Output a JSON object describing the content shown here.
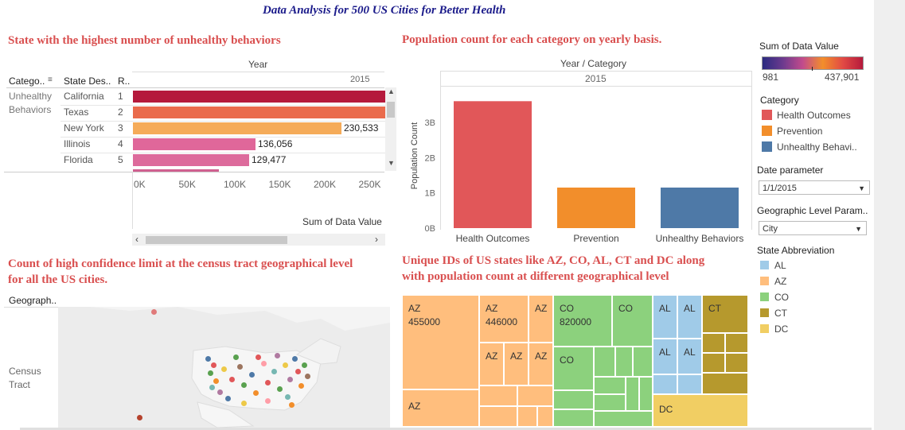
{
  "dashboard": {
    "title": "Data Analysis for 500 US Cities for Better Health"
  },
  "panel1": {
    "title": "State with the highest number of unhealthy behaviors",
    "col_header_top": "Year",
    "col_header_year": "2015",
    "headers": [
      "Catego..",
      "State Des..",
      "R.."
    ],
    "category_label": "Unhealthy Behaviors",
    "rows": [
      {
        "state": "California",
        "rank": "1",
        "value_label": "",
        "color": "#b5193c"
      },
      {
        "state": "Texas",
        "rank": "2",
        "value_label": "",
        "color": "#ea6b4c"
      },
      {
        "state": "New York",
        "rank": "3",
        "value_label": "230,533",
        "color": "#f5ab59"
      },
      {
        "state": "Illinois",
        "rank": "4",
        "value_label": "136,056",
        "color": "#e0679a"
      },
      {
        "state": "Florida",
        "rank": "5",
        "value_label": "129,477",
        "color": "#dd6b9c"
      }
    ],
    "x_ticks": [
      "0K",
      "50K",
      "100K",
      "150K",
      "200K",
      "250K"
    ],
    "x_title": "Sum of Data Value"
  },
  "panel2": {
    "title": "Population count for each category on yearly basis.",
    "col_header_top": "Year / Category",
    "col_header_year": "2015",
    "y_title": "Population Count",
    "y_ticks": [
      "3B",
      "2B",
      "1B",
      "0B"
    ]
  },
  "chart_data": {
    "type": "bar",
    "categories": [
      "Health Outcomes",
      "Prevention",
      "Unhealthy Behaviors"
    ],
    "values": [
      3.6,
      1.15,
      1.15
    ],
    "ylabel": "Population Count",
    "ylim": [
      0,
      3.9
    ],
    "colors": [
      "#e15759",
      "#f28e2b",
      "#4e79a7"
    ]
  },
  "panel3": {
    "title_line1": "Count of high confidence limit at the census tract geographical level",
    "title_line2": "for all the US cities.",
    "row_header": "Geograph..",
    "row_label_1": "Census",
    "row_label_2": "Tract"
  },
  "panel4": {
    "title_line1": "Unique IDs of US states like AZ, CO, AL, CT and DC along",
    "title_line2": "with population count at different geographical level",
    "cells": {
      "az_big": {
        "abbr": "AZ",
        "value": "455000"
      },
      "az_second": {
        "abbr": "AZ",
        "value": "446000"
      },
      "az_a": "AZ",
      "az_b": "AZ",
      "az_c": "AZ",
      "az_d": "AZ",
      "az_bottom": "AZ",
      "co_big": {
        "abbr": "CO",
        "value": "820000"
      },
      "co_b": "CO",
      "co_c": "CO",
      "al_a": "AL",
      "al_b": "AL",
      "al_c": "AL",
      "al_d": "AL",
      "ct": "CT",
      "dc": "DC"
    }
  },
  "sidebar": {
    "color_legend_title": "Sum of Data Value",
    "color_min": "981",
    "color_max": "437,901",
    "category_title": "Category",
    "categories": [
      {
        "label": "Health Outcomes",
        "color": "#e15759"
      },
      {
        "label": "Prevention",
        "color": "#f28e2b"
      },
      {
        "label": "Unhealthy Behavi..",
        "color": "#4e79a7"
      }
    ],
    "date_param_title": "Date parameter",
    "date_param_value": "1/1/2015",
    "geo_param_title": "Geographic Level Param..",
    "geo_param_value": "City",
    "state_title": "State Abbreviation",
    "states": [
      {
        "label": "AL",
        "color": "#a0cbe8"
      },
      {
        "label": "AZ",
        "color": "#ffbe7d"
      },
      {
        "label": "CO",
        "color": "#8cd17d"
      },
      {
        "label": "CT",
        "color": "#b6992d"
      },
      {
        "label": "DC",
        "color": "#f1ce63"
      }
    ]
  }
}
